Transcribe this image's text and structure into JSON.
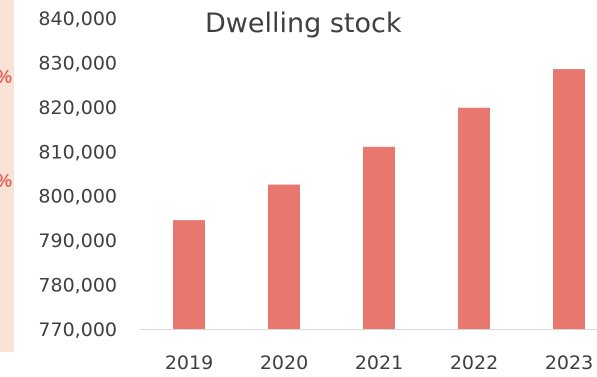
{
  "chart_data": {
    "type": "bar",
    "title": "Dwelling stock",
    "xlabel": "",
    "ylabel": "",
    "categories": [
      "2019",
      "2020",
      "2021",
      "2022",
      "2023"
    ],
    "values": [
      794500,
      802500,
      811000,
      819800,
      828500
    ],
    "ylim": [
      770000,
      840000
    ],
    "yticks": [
      770000,
      780000,
      790000,
      800000,
      810000,
      820000,
      830000,
      840000
    ],
    "ytick_labels": [
      "770,000",
      "780,000",
      "790,000",
      "800,000",
      "810,000",
      "820,000",
      "830,000",
      "840,000"
    ],
    "grid": false,
    "legend": "none",
    "bar_color": "#e8776e"
  },
  "side_panel": {
    "glyph_1": "%",
    "glyph_2": "%",
    "background": "#f9e3d6",
    "glyph_color": "#e0665a"
  }
}
